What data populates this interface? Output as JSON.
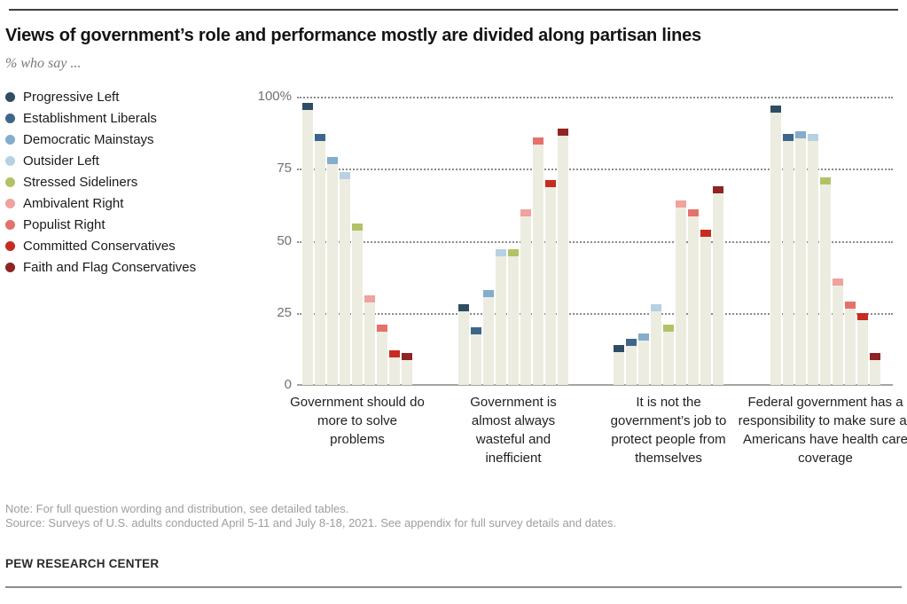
{
  "title": "Views of government’s role and performance mostly are divided along partisan lines",
  "subtitle": "% who say ...",
  "chart_data": {
    "type": "bar",
    "categories": [
      "Government should do more to solve problems",
      "Government is almost always wasteful and inefficient",
      "It is not the government’s job to protect people from themselves",
      "Federal government has a responsibility to make sure all Americans have health care coverage"
    ],
    "series": [
      {
        "name": "Progressive Left",
        "color": "#2E4D63",
        "values": [
          98,
          28,
          14,
          97
        ]
      },
      {
        "name": "Establishment Liberals",
        "color": "#3D668A",
        "values": [
          87,
          20,
          16,
          87
        ]
      },
      {
        "name": "Democratic Mainstays",
        "color": "#84ADCD",
        "values": [
          79,
          33,
          18,
          88
        ]
      },
      {
        "name": "Outsider Left",
        "color": "#B7D0E2",
        "values": [
          74,
          47,
          28,
          87
        ]
      },
      {
        "name": "Stressed Sideliners",
        "color": "#B3C266",
        "values": [
          56,
          47,
          21,
          72
        ]
      },
      {
        "name": "Ambivalent Right",
        "color": "#F0A29E",
        "values": [
          31,
          61,
          64,
          37
        ]
      },
      {
        "name": "Populist Right",
        "color": "#E5716C",
        "values": [
          21,
          86,
          61,
          29
        ]
      },
      {
        "name": "Committed Conservatives",
        "color": "#C82B1F",
        "values": [
          12,
          71,
          54,
          25
        ]
      },
      {
        "name": "Faith and Flag Conservatives",
        "color": "#8E2423",
        "values": [
          11,
          89,
          69,
          11
        ]
      }
    ],
    "yticks": [
      "100%",
      "75",
      "50",
      "25",
      "0"
    ],
    "ytick_values": [
      100,
      75,
      50,
      25,
      0
    ],
    "ylim": [
      0,
      100
    ],
    "grid": "horizontal-dotted",
    "legend_position": "left",
    "bar_background": "#ECEDE0"
  },
  "notes": {
    "note": "Note: For full question wording and distribution, see detailed tables.",
    "source": "Source: Surveys of U.S. adults conducted April 5-11 and July 8-18, 2021. See appendix for full survey details and dates."
  },
  "footer": {
    "brand": "PEW RESEARCH CENTER"
  }
}
